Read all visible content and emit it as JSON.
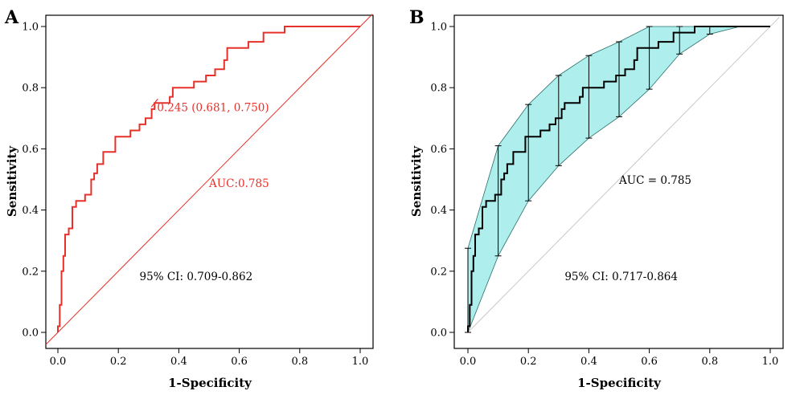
{
  "chart_data": [
    {
      "panel": "A",
      "type": "line",
      "xlabel": "1-Specificity",
      "ylabel": "Sensitivity",
      "xlim": [
        0,
        1
      ],
      "ylim": [
        0,
        1
      ],
      "xticks": [
        "0.0",
        "0.2",
        "0.4",
        "0.6",
        "0.8",
        "1.0"
      ],
      "yticks": [
        "0.0",
        "0.2",
        "0.4",
        "0.6",
        "0.8",
        "1.0"
      ],
      "color": "#e8302a",
      "series": [
        {
          "x": [
            0.0,
            0.0,
            0.006,
            0.006,
            0.012,
            0.012,
            0.018,
            0.018,
            0.024,
            0.024,
            0.036,
            0.036,
            0.048,
            0.048,
            0.06,
            0.06,
            0.07,
            0.07,
            0.09,
            0.09,
            0.11,
            0.11,
            0.12,
            0.12,
            0.13,
            0.13,
            0.14,
            0.14,
            0.15,
            0.15,
            0.17,
            0.17,
            0.19,
            0.19,
            0.21,
            0.21,
            0.24,
            0.24,
            0.27,
            0.27,
            0.29,
            0.29,
            0.3,
            0.3,
            0.31,
            0.31,
            0.32,
            0.32,
            0.37,
            0.37,
            0.38,
            0.38,
            0.45,
            0.45,
            0.49,
            0.49,
            0.52,
            0.52,
            0.55,
            0.55,
            0.56,
            0.56,
            0.59,
            0.59,
            0.63,
            0.63,
            0.68,
            0.68,
            0.75,
            0.75,
            1.0
          ],
          "y": [
            0.0,
            0.02,
            0.02,
            0.09,
            0.09,
            0.2,
            0.2,
            0.25,
            0.25,
            0.32,
            0.32,
            0.34,
            0.34,
            0.41,
            0.41,
            0.43,
            0.43,
            0.43,
            0.43,
            0.45,
            0.45,
            0.5,
            0.5,
            0.52,
            0.52,
            0.55,
            0.55,
            0.55,
            0.55,
            0.59,
            0.59,
            0.59,
            0.59,
            0.64,
            0.64,
            0.64,
            0.64,
            0.66,
            0.66,
            0.68,
            0.68,
            0.7,
            0.7,
            0.7,
            0.7,
            0.73,
            0.73,
            0.75,
            0.75,
            0.77,
            0.77,
            0.8,
            0.8,
            0.82,
            0.82,
            0.84,
            0.84,
            0.86,
            0.86,
            0.89,
            0.89,
            0.93,
            0.93,
            0.93,
            0.93,
            0.95,
            0.95,
            0.98,
            0.98,
            1.0,
            1.0
          ]
        }
      ],
      "threshold_point": {
        "x": 0.32,
        "y": 0.75,
        "label": "0.245 (0.681, 0.750)"
      },
      "annotations": {
        "auc": "AUC:0.785",
        "ci": "95% CI: 0.709-0.862"
      }
    },
    {
      "panel": "B",
      "type": "line",
      "xlabel": "1-Specificity",
      "ylabel": "Sensitivity",
      "xlim": [
        0,
        1
      ],
      "ylim": [
        0,
        1
      ],
      "xticks": [
        "0.0",
        "0.2",
        "0.4",
        "0.6",
        "0.8",
        "1.0"
      ],
      "yticks": [
        "0.0",
        "0.2",
        "0.4",
        "0.6",
        "0.8",
        "1.0"
      ],
      "series": [
        {
          "x": [
            0.0,
            0.0,
            0.006,
            0.006,
            0.012,
            0.012,
            0.018,
            0.018,
            0.024,
            0.024,
            0.036,
            0.036,
            0.048,
            0.048,
            0.06,
            0.06,
            0.07,
            0.07,
            0.09,
            0.09,
            0.11,
            0.11,
            0.12,
            0.12,
            0.13,
            0.13,
            0.14,
            0.14,
            0.15,
            0.15,
            0.17,
            0.17,
            0.19,
            0.19,
            0.21,
            0.21,
            0.24,
            0.24,
            0.27,
            0.27,
            0.29,
            0.29,
            0.3,
            0.3,
            0.31,
            0.31,
            0.32,
            0.32,
            0.37,
            0.37,
            0.38,
            0.38,
            0.45,
            0.45,
            0.49,
            0.49,
            0.52,
            0.52,
            0.55,
            0.55,
            0.56,
            0.56,
            0.59,
            0.59,
            0.63,
            0.63,
            0.68,
            0.68,
            0.75,
            0.75,
            1.0
          ],
          "y": [
            0.0,
            0.02,
            0.02,
            0.09,
            0.09,
            0.2,
            0.2,
            0.25,
            0.25,
            0.32,
            0.32,
            0.34,
            0.34,
            0.41,
            0.41,
            0.43,
            0.43,
            0.43,
            0.43,
            0.45,
            0.45,
            0.5,
            0.5,
            0.52,
            0.52,
            0.55,
            0.55,
            0.55,
            0.55,
            0.59,
            0.59,
            0.59,
            0.59,
            0.64,
            0.64,
            0.64,
            0.64,
            0.66,
            0.66,
            0.68,
            0.68,
            0.7,
            0.7,
            0.7,
            0.7,
            0.73,
            0.73,
            0.75,
            0.75,
            0.77,
            0.77,
            0.8,
            0.8,
            0.82,
            0.82,
            0.84,
            0.84,
            0.86,
            0.86,
            0.89,
            0.89,
            0.93,
            0.93,
            0.93,
            0.93,
            0.95,
            0.95,
            0.98,
            0.98,
            1.0,
            1.0
          ]
        }
      ],
      "ci_band": {
        "x": [
          0.0,
          0.1,
          0.2,
          0.3,
          0.4,
          0.5,
          0.6,
          0.7,
          0.8,
          0.9,
          1.0
        ],
        "lower": [
          0.0,
          0.25,
          0.43,
          0.545,
          0.635,
          0.705,
          0.795,
          0.91,
          0.975,
          1.0,
          1.0
        ],
        "upper": [
          0.275,
          0.61,
          0.745,
          0.84,
          0.905,
          0.95,
          1.0,
          1.0,
          1.0,
          1.0,
          1.0
        ]
      },
      "ci_fill": "#aeeeec",
      "annotations": {
        "auc": "AUC = 0.785",
        "ci": "95% CI: 0.717-0.864"
      }
    }
  ]
}
